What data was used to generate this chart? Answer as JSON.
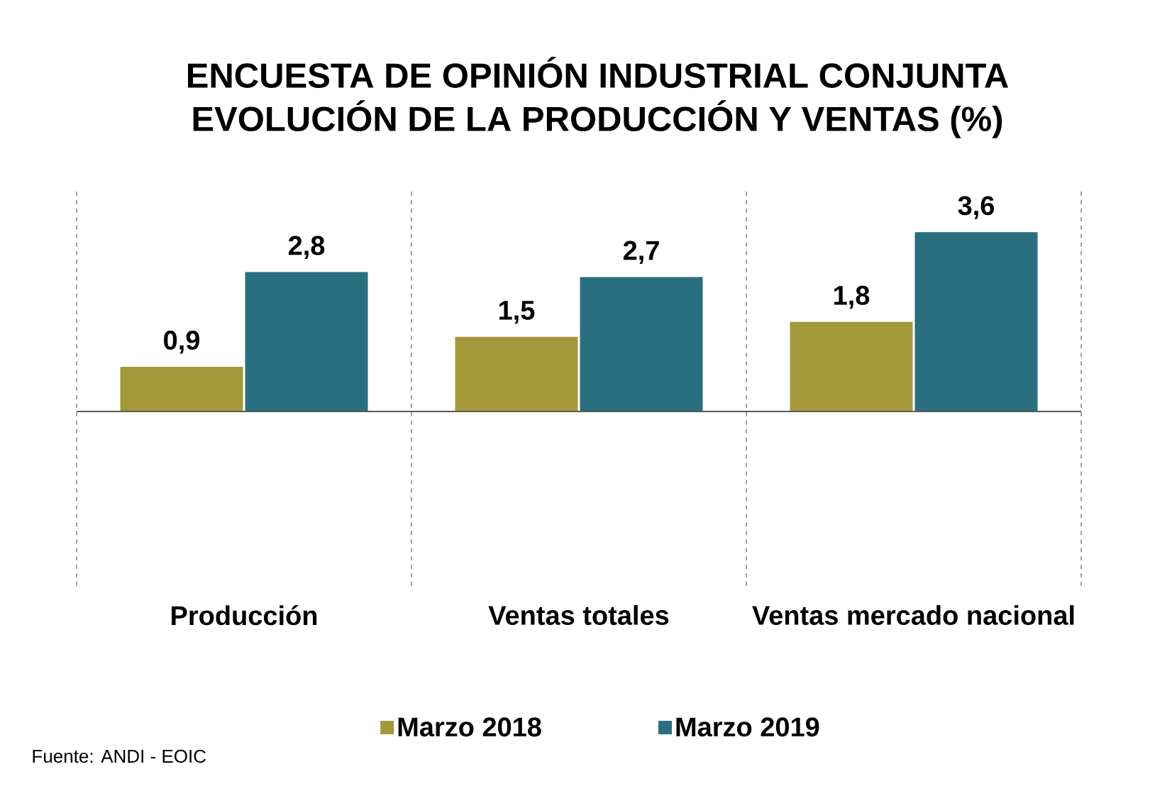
{
  "chart_data": {
    "type": "bar",
    "title": "ENCUESTA DE OPINIÓN INDUSTRIAL CONJUNTA",
    "subtitle": "EVOLUCIÓN DE LA PRODUCCIÓN Y VENTAS (%)",
    "categories": [
      "Producción",
      "Ventas totales",
      "Ventas mercado nacional"
    ],
    "series": [
      {
        "name": "Marzo 2018",
        "color": "#a3983a",
        "values": [
          0.9,
          1.5,
          1.8
        ],
        "value_labels": [
          "0,9",
          "1,5",
          "1,8"
        ]
      },
      {
        "name": "Marzo 2019",
        "color": "#296f80",
        "values": [
          2.8,
          2.7,
          3.6
        ],
        "value_labels": [
          "2,8",
          "2,7",
          "3,6"
        ]
      }
    ],
    "ylim": [
      -3.5,
      4.5
    ],
    "grid": "x",
    "legend": "bottom",
    "annotations": [
      "Fuente: ANDI - EOIC"
    ]
  }
}
